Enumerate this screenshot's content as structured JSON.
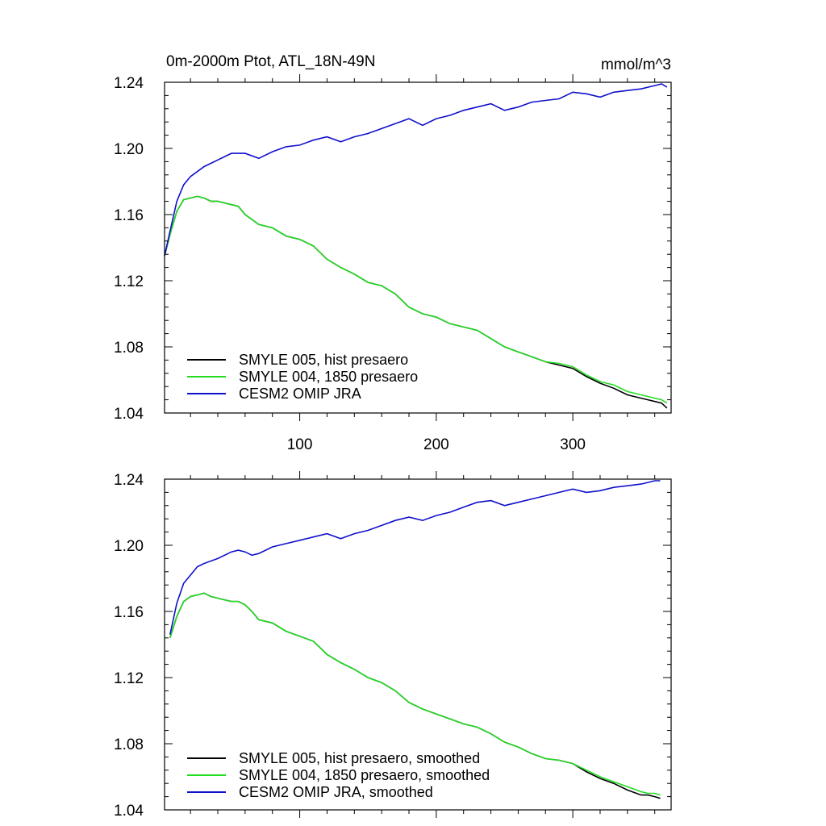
{
  "chart_data": [
    {
      "type": "line",
      "title": "0m-2000m Ptot, ATL_18N-49N",
      "units": "mmol/m^3",
      "xlim": [
        1,
        372
      ],
      "ylim": [
        1.04,
        1.24
      ],
      "xticks": [
        100,
        200,
        300
      ],
      "yticks": [
        1.04,
        1.08,
        1.12,
        1.16,
        1.2,
        1.24
      ],
      "ytick_labels": [
        "1.04",
        "1.08",
        "1.12",
        "1.16",
        "1.20",
        "1.24"
      ],
      "grid": false,
      "legend_position": "bottom-left",
      "series": [
        {
          "name": "SMYLE 005, hist presaero",
          "color": "#000000",
          "x": [
            1,
            5,
            10,
            15,
            20,
            25,
            30,
            35,
            40,
            45,
            50,
            55,
            60,
            70,
            80,
            90,
            100,
            110,
            120,
            130,
            140,
            150,
            160,
            170,
            180,
            190,
            200,
            210,
            220,
            230,
            240,
            250,
            260,
            270,
            280,
            290,
            300,
            310,
            320,
            330,
            340,
            350,
            355,
            360,
            365,
            369
          ],
          "y": [
            1.135,
            1.148,
            1.162,
            1.169,
            1.17,
            1.171,
            1.17,
            1.168,
            1.168,
            1.167,
            1.166,
            1.165,
            1.16,
            1.154,
            1.152,
            1.147,
            1.145,
            1.141,
            1.133,
            1.128,
            1.124,
            1.119,
            1.117,
            1.112,
            1.104,
            1.1,
            1.098,
            1.094,
            1.092,
            1.09,
            1.085,
            1.08,
            1.077,
            1.074,
            1.071,
            1.069,
            1.067,
            1.062,
            1.058,
            1.055,
            1.051,
            1.049,
            1.048,
            1.047,
            1.046,
            1.043
          ]
        },
        {
          "name": "SMYLE 004, 1850 presaero",
          "color": "#22dd22",
          "x": [
            1,
            5,
            10,
            15,
            20,
            25,
            30,
            35,
            40,
            45,
            50,
            55,
            60,
            70,
            80,
            90,
            100,
            110,
            120,
            130,
            140,
            150,
            160,
            170,
            180,
            190,
            200,
            210,
            220,
            230,
            240,
            250,
            260,
            270,
            280,
            290,
            300,
            310,
            320,
            330,
            340,
            350,
            355,
            360,
            365,
            369
          ],
          "y": [
            1.135,
            1.148,
            1.162,
            1.169,
            1.17,
            1.171,
            1.17,
            1.168,
            1.168,
            1.167,
            1.166,
            1.165,
            1.16,
            1.154,
            1.152,
            1.147,
            1.145,
            1.141,
            1.133,
            1.128,
            1.124,
            1.119,
            1.117,
            1.112,
            1.104,
            1.1,
            1.098,
            1.094,
            1.092,
            1.09,
            1.085,
            1.08,
            1.077,
            1.074,
            1.071,
            1.07,
            1.068,
            1.063,
            1.059,
            1.057,
            1.053,
            1.051,
            1.05,
            1.049,
            1.048,
            1.046
          ]
        },
        {
          "name": "CESM2 OMIP JRA",
          "color": "#1010cc",
          "x": [
            1,
            5,
            10,
            15,
            20,
            25,
            30,
            40,
            50,
            60,
            70,
            80,
            90,
            100,
            110,
            120,
            130,
            140,
            150,
            160,
            170,
            180,
            190,
            200,
            210,
            220,
            230,
            240,
            250,
            260,
            270,
            280,
            290,
            300,
            310,
            320,
            330,
            340,
            350,
            355,
            360,
            365,
            369
          ],
          "y": [
            1.135,
            1.15,
            1.168,
            1.178,
            1.183,
            1.186,
            1.189,
            1.193,
            1.197,
            1.197,
            1.194,
            1.198,
            1.201,
            1.202,
            1.205,
            1.207,
            1.204,
            1.207,
            1.209,
            1.212,
            1.215,
            1.218,
            1.214,
            1.218,
            1.22,
            1.223,
            1.225,
            1.227,
            1.223,
            1.225,
            1.228,
            1.229,
            1.23,
            1.234,
            1.233,
            1.231,
            1.234,
            1.235,
            1.236,
            1.237,
            1.238,
            1.239,
            1.237
          ]
        }
      ]
    },
    {
      "type": "line",
      "title": "",
      "xlim": [
        1,
        372
      ],
      "ylim": [
        1.04,
        1.24
      ],
      "xticks": [
        100,
        200,
        300
      ],
      "yticks": [
        1.04,
        1.08,
        1.12,
        1.16,
        1.2,
        1.24
      ],
      "ytick_labels": [
        "1.04",
        "1.08",
        "1.12",
        "1.16",
        "1.20",
        "1.24"
      ],
      "grid": false,
      "legend_position": "bottom-left",
      "series": [
        {
          "name": "SMYLE 005, hist presaero, smoothed",
          "color": "#000000",
          "x": [
            5,
            10,
            15,
            20,
            25,
            30,
            35,
            40,
            45,
            50,
            55,
            60,
            65,
            70,
            80,
            90,
            100,
            110,
            120,
            130,
            140,
            150,
            160,
            170,
            180,
            190,
            200,
            210,
            220,
            230,
            240,
            250,
            260,
            270,
            280,
            290,
            300,
            310,
            320,
            330,
            340,
            350,
            355,
            360,
            364
          ],
          "y": [
            1.144,
            1.157,
            1.166,
            1.169,
            1.17,
            1.171,
            1.169,
            1.168,
            1.167,
            1.166,
            1.166,
            1.164,
            1.16,
            1.155,
            1.153,
            1.148,
            1.145,
            1.142,
            1.134,
            1.129,
            1.125,
            1.12,
            1.117,
            1.112,
            1.105,
            1.101,
            1.098,
            1.095,
            1.092,
            1.09,
            1.086,
            1.081,
            1.078,
            1.074,
            1.071,
            1.07,
            1.068,
            1.063,
            1.059,
            1.056,
            1.052,
            1.049,
            1.049,
            1.048,
            1.047
          ]
        },
        {
          "name": "SMYLE 004, 1850 presaero, smoothed",
          "color": "#22dd22",
          "x": [
            5,
            10,
            15,
            20,
            25,
            30,
            35,
            40,
            45,
            50,
            55,
            60,
            65,
            70,
            80,
            90,
            100,
            110,
            120,
            130,
            140,
            150,
            160,
            170,
            180,
            190,
            200,
            210,
            220,
            230,
            240,
            250,
            260,
            270,
            280,
            290,
            300,
            310,
            320,
            330,
            340,
            350,
            355,
            360,
            364
          ],
          "y": [
            1.144,
            1.157,
            1.166,
            1.169,
            1.17,
            1.171,
            1.169,
            1.168,
            1.167,
            1.166,
            1.166,
            1.164,
            1.16,
            1.155,
            1.153,
            1.148,
            1.145,
            1.142,
            1.134,
            1.129,
            1.125,
            1.12,
            1.117,
            1.112,
            1.105,
            1.101,
            1.098,
            1.095,
            1.092,
            1.09,
            1.086,
            1.081,
            1.078,
            1.074,
            1.071,
            1.07,
            1.068,
            1.064,
            1.06,
            1.057,
            1.054,
            1.051,
            1.05,
            1.05,
            1.049
          ]
        },
        {
          "name": "CESM2 OMIP JRA, smoothed",
          "color": "#1010cc",
          "x": [
            5,
            10,
            15,
            20,
            25,
            30,
            40,
            50,
            55,
            60,
            65,
            70,
            80,
            90,
            100,
            110,
            120,
            130,
            140,
            150,
            160,
            170,
            180,
            190,
            200,
            210,
            220,
            230,
            240,
            250,
            260,
            270,
            280,
            290,
            300,
            310,
            320,
            330,
            340,
            350,
            355,
            360,
            364
          ],
          "y": [
            1.146,
            1.165,
            1.177,
            1.182,
            1.187,
            1.189,
            1.192,
            1.196,
            1.197,
            1.196,
            1.194,
            1.195,
            1.199,
            1.201,
            1.203,
            1.205,
            1.207,
            1.204,
            1.207,
            1.209,
            1.212,
            1.215,
            1.217,
            1.215,
            1.218,
            1.22,
            1.223,
            1.226,
            1.227,
            1.224,
            1.226,
            1.228,
            1.23,
            1.232,
            1.234,
            1.232,
            1.233,
            1.235,
            1.236,
            1.237,
            1.238,
            1.239,
            1.239
          ]
        }
      ]
    }
  ]
}
